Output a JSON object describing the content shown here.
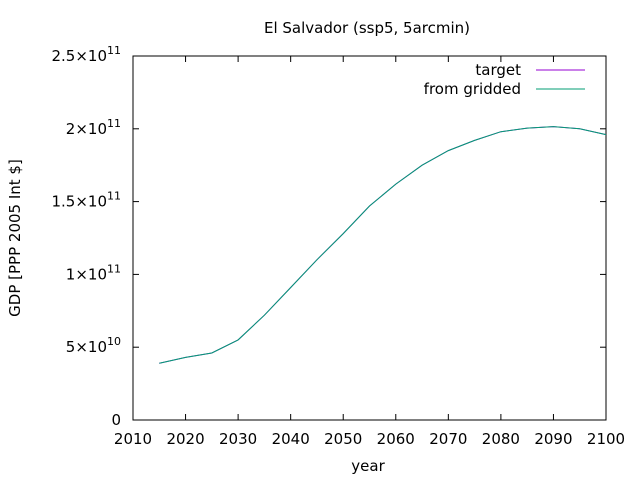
{
  "chart_data": {
    "type": "line",
    "title": "El Salvador (ssp5, 5arcmin)",
    "xlabel": "year",
    "ylabel": "GDP [PPP 2005 Int $]",
    "xlim": [
      2010,
      2100
    ],
    "ylim": [
      0,
      250000000000
    ],
    "x_ticks": [
      2010,
      2020,
      2030,
      2040,
      2050,
      2060,
      2070,
      2080,
      2090,
      2100
    ],
    "y_ticks": [
      {
        "value": 0,
        "mantissa": "0",
        "exponent": ""
      },
      {
        "value": 50000000000,
        "mantissa": "5×10",
        "exponent": "10"
      },
      {
        "value": 100000000000,
        "mantissa": "1×10",
        "exponent": "11"
      },
      {
        "value": 150000000000,
        "mantissa": "1.5×10",
        "exponent": "11"
      },
      {
        "value": 200000000000,
        "mantissa": "2×10",
        "exponent": "11"
      },
      {
        "value": 250000000000,
        "mantissa": "2.5×10",
        "exponent": "11"
      }
    ],
    "grid": false,
    "legend_position": "top-right",
    "series": [
      {
        "name": "target",
        "color": "#9400d3",
        "x": [
          2015,
          2020,
          2025,
          2030,
          2035,
          2040,
          2045,
          2050,
          2055,
          2060,
          2065,
          2070,
          2075,
          2080,
          2085,
          2090,
          2095,
          2100
        ],
        "y": [
          39000000000,
          43000000000,
          46000000000,
          55000000000,
          72000000000,
          91000000000,
          110000000000,
          128000000000,
          147000000000,
          162000000000,
          175000000000,
          185000000000,
          192000000000,
          198000000000,
          200500000000,
          201500000000,
          200000000000,
          196000000000
        ]
      },
      {
        "name": "from gridded",
        "color": "#009e73",
        "x": [
          2015,
          2020,
          2025,
          2030,
          2035,
          2040,
          2045,
          2050,
          2055,
          2060,
          2065,
          2070,
          2075,
          2080,
          2085,
          2090,
          2095,
          2100
        ],
        "y": [
          39000000000,
          43000000000,
          46000000000,
          55000000000,
          72000000000,
          91000000000,
          110000000000,
          128000000000,
          147000000000,
          162000000000,
          175000000000,
          185000000000,
          192000000000,
          198000000000,
          200500000000,
          201500000000,
          200000000000,
          196000000000
        ]
      }
    ]
  }
}
